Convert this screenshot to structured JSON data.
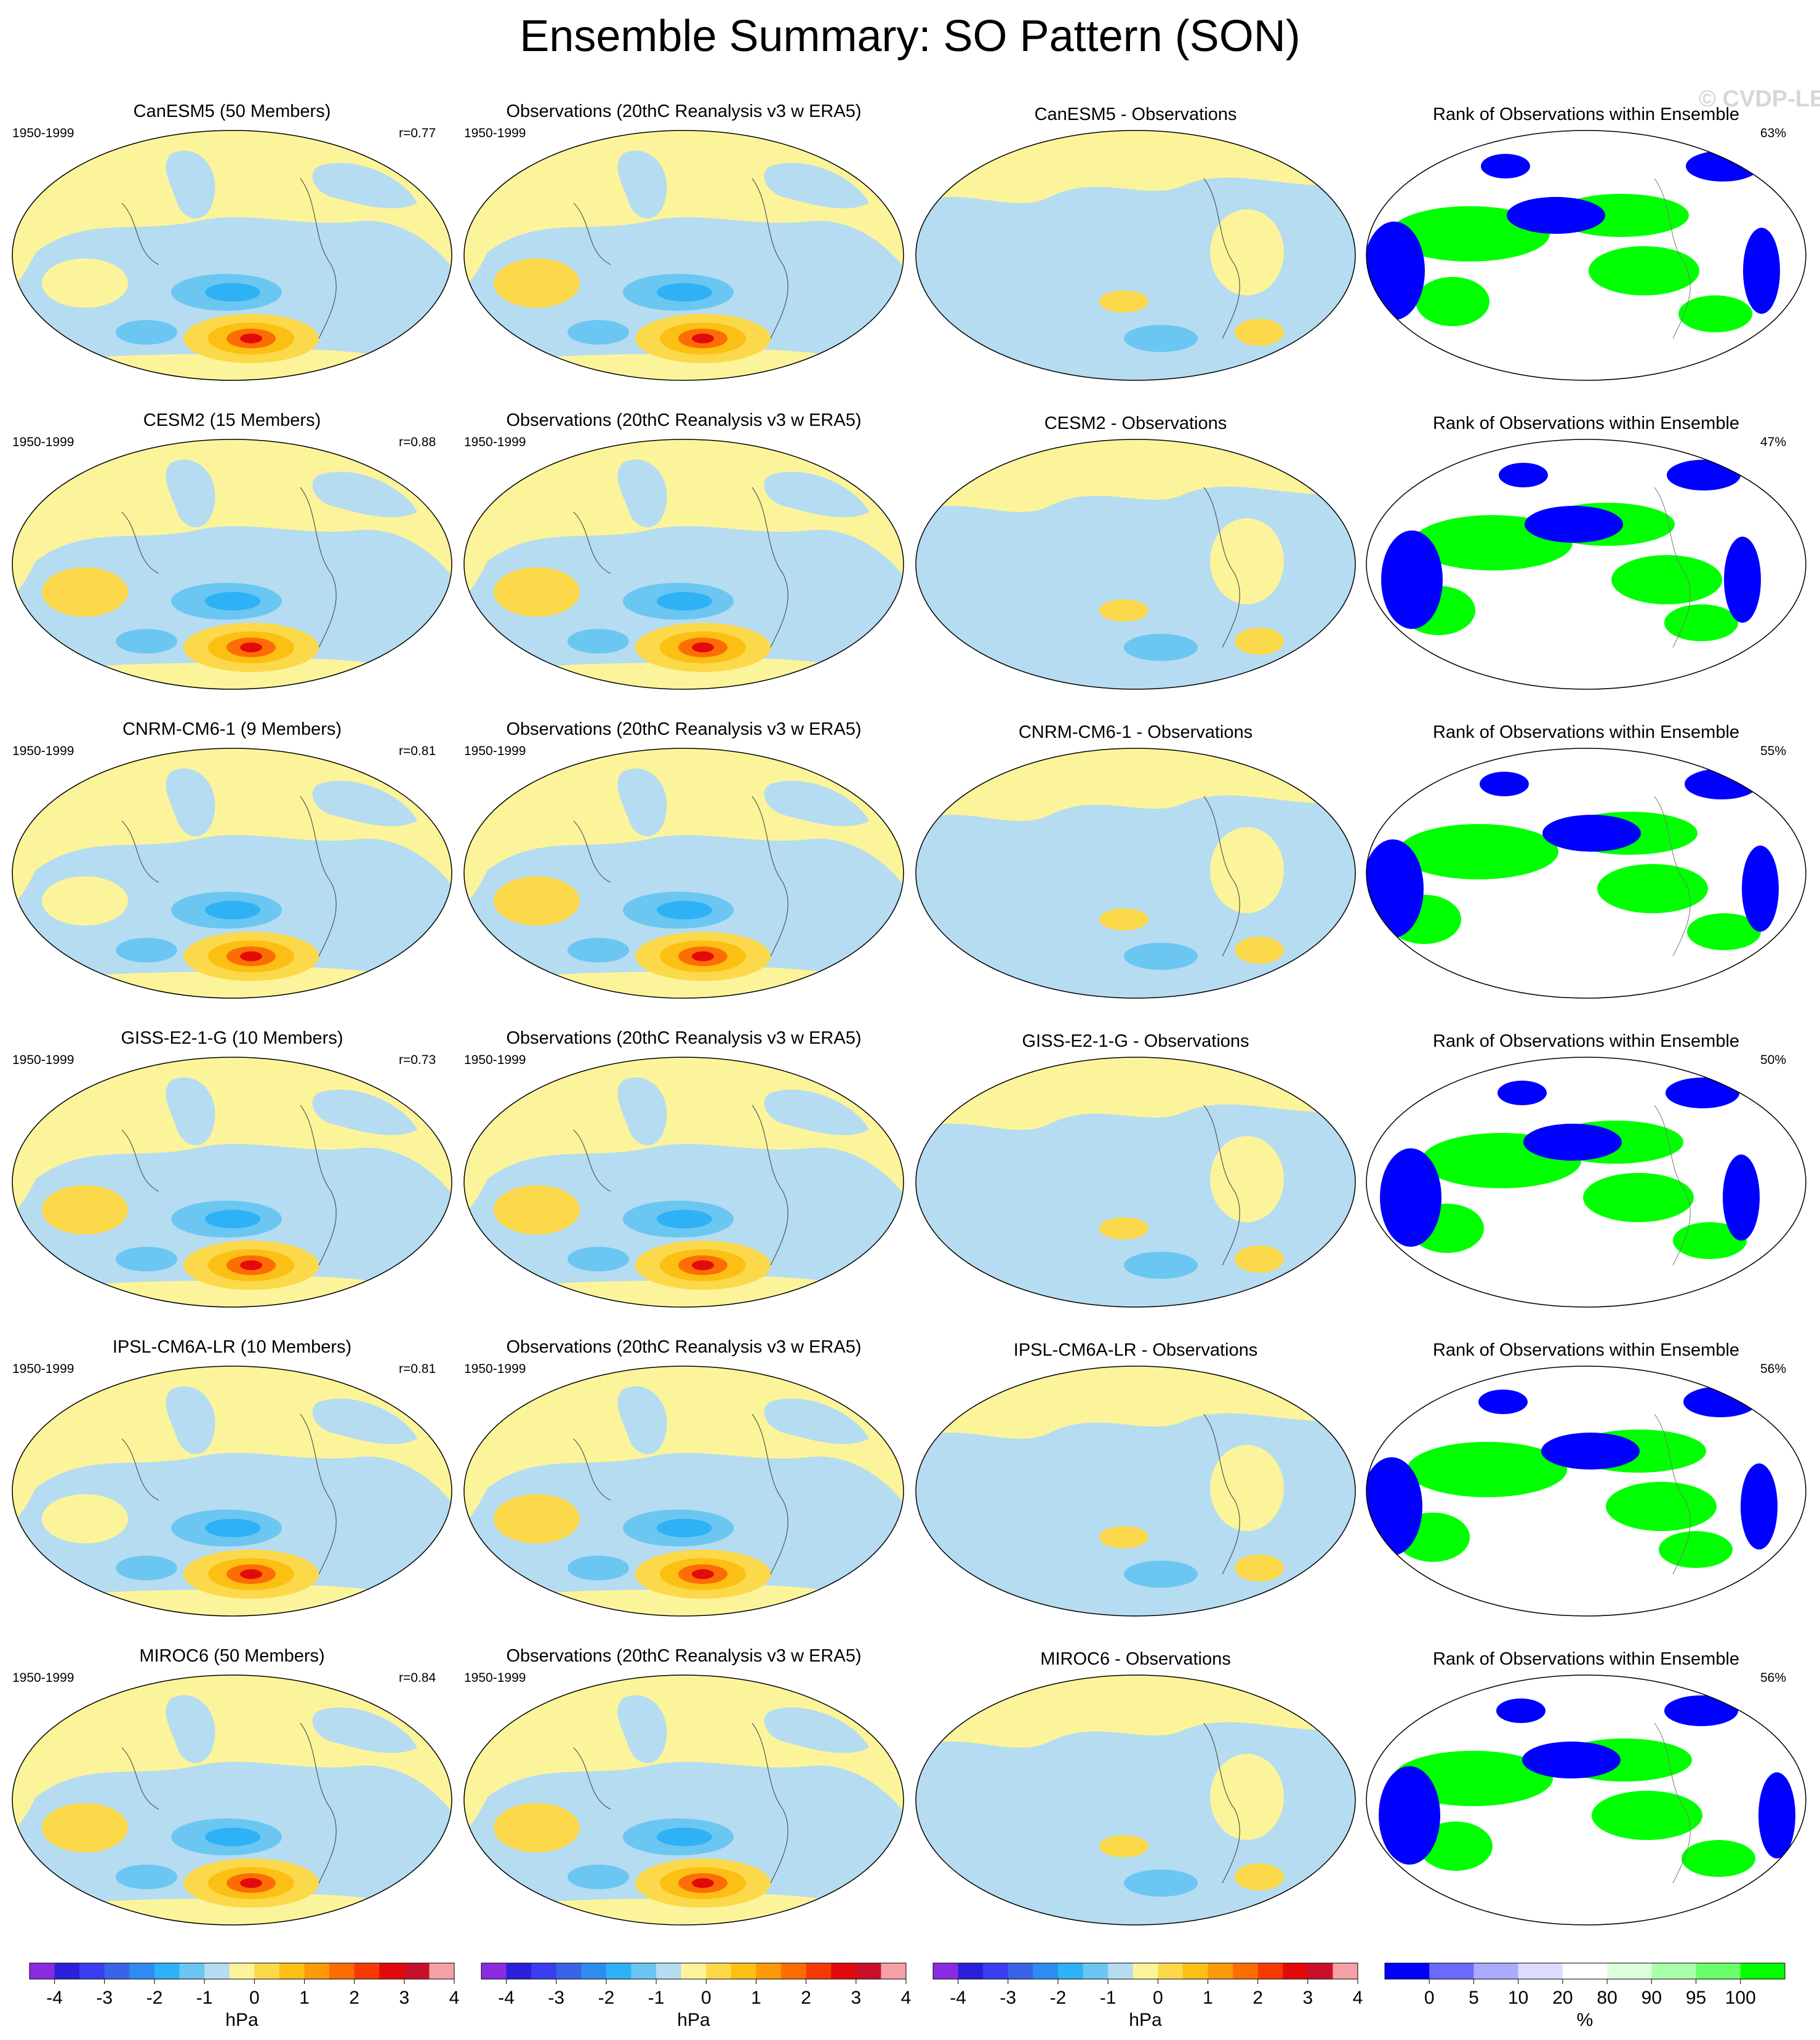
{
  "title": "Ensemble Summary: SO Pattern (SON)",
  "watermark": "© CVDP-LE",
  "period": "1950-1999",
  "obs_title": "Observations (20thC Reanalysis v3 w ERA5)",
  "rank_title": "Rank of Observations within Ensemble",
  "rows": [
    {
      "model_title": "CanESM5 (50 Members)",
      "r": "r=0.77",
      "diff_title": "CanESM5 - Observations",
      "rank_pct": "63%"
    },
    {
      "model_title": "CESM2 (15 Members)",
      "r": "r=0.88",
      "diff_title": "CESM2 - Observations",
      "rank_pct": "47%"
    },
    {
      "model_title": "CNRM-CM6-1 (9 Members)",
      "r": "r=0.81",
      "diff_title": "CNRM-CM6-1 - Observations",
      "rank_pct": "55%"
    },
    {
      "model_title": "GISS-E2-1-G (10 Members)",
      "r": "r=0.73",
      "diff_title": "GISS-E2-1-G - Observations",
      "rank_pct": "50%"
    },
    {
      "model_title": "IPSL-CM6A-LR (10 Members)",
      "r": "r=0.81",
      "diff_title": "IPSL-CM6A-LR - Observations",
      "rank_pct": "56%"
    },
    {
      "model_title": "MIROC6 (50 Members)",
      "r": "r=0.84",
      "diff_title": "MIROC6 - Observations",
      "rank_pct": "56%"
    }
  ],
  "colorbar_hpa": {
    "unit": "hPa",
    "ticks": [
      "-4",
      "-3",
      "-2",
      "-1",
      "0",
      "1",
      "2",
      "3",
      "4"
    ],
    "colors": [
      "#8a2be2",
      "#2b1fd8",
      "#3b3ef0",
      "#3a64e8",
      "#2e8cf0",
      "#2eb2f5",
      "#6cc6f2",
      "#b5dcf1",
      "#fcf49a",
      "#fcd94a",
      "#fcbf14",
      "#fc9a0a",
      "#fc6e05",
      "#f73a05",
      "#e20a0a",
      "#c8102a",
      "#f6a0a8"
    ]
  },
  "colorbar_rank": {
    "unit": "%",
    "ticks": [
      "0",
      "5",
      "10",
      "20",
      "80",
      "90",
      "95",
      "100"
    ],
    "colors": [
      "#0000ff",
      "#6a6aff",
      "#aaaaff",
      "#dcdcff",
      "#ffffff",
      "#dcffdc",
      "#aaffaa",
      "#6aff6a",
      "#00ff00"
    ]
  }
}
